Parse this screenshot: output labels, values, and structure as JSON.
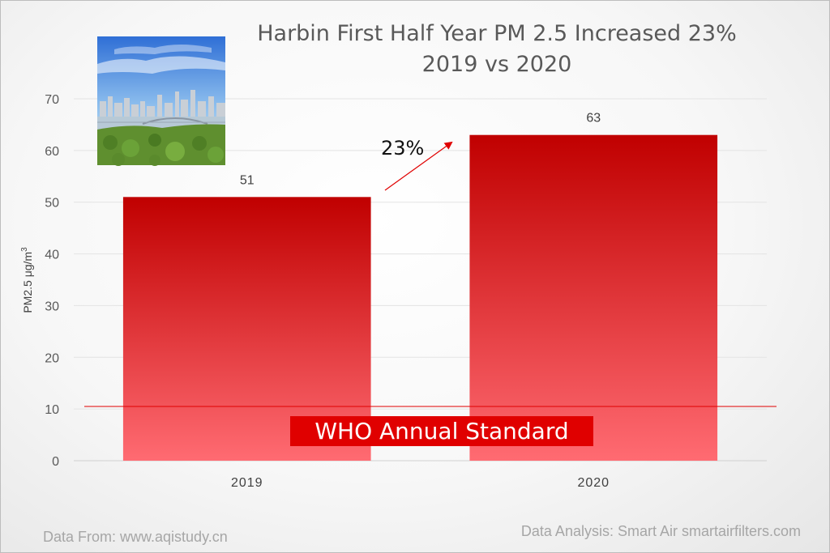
{
  "chart_data": {
    "type": "bar",
    "title_line1": "Harbin First Half Year PM 2.5 Increased 23%",
    "title_line2": "2019 vs 2020",
    "ylabel": "PM2.5  μg/m",
    "ylabel_sup": "3",
    "categories": [
      "2019",
      "2020"
    ],
    "values": [
      51,
      63
    ],
    "ylim": [
      0,
      70
    ],
    "yticks": [
      0,
      10,
      20,
      30,
      40,
      50,
      60,
      70
    ],
    "bar_color_top": "#c00000",
    "bar_color_bottom": "#ff6b72",
    "reference_line": {
      "value": 10.5,
      "label": "WHO Annual Standard",
      "color": "#e00000"
    },
    "annotation": {
      "text": "23%",
      "color": "#e00000"
    },
    "grid": true
  },
  "footer": {
    "source": "Data From: www.aqistudy.cn",
    "analysis": "Data Analysis: Smart Air smartairfilters.com"
  },
  "photo": {
    "subject": "Harbin city skyline with river and park"
  }
}
